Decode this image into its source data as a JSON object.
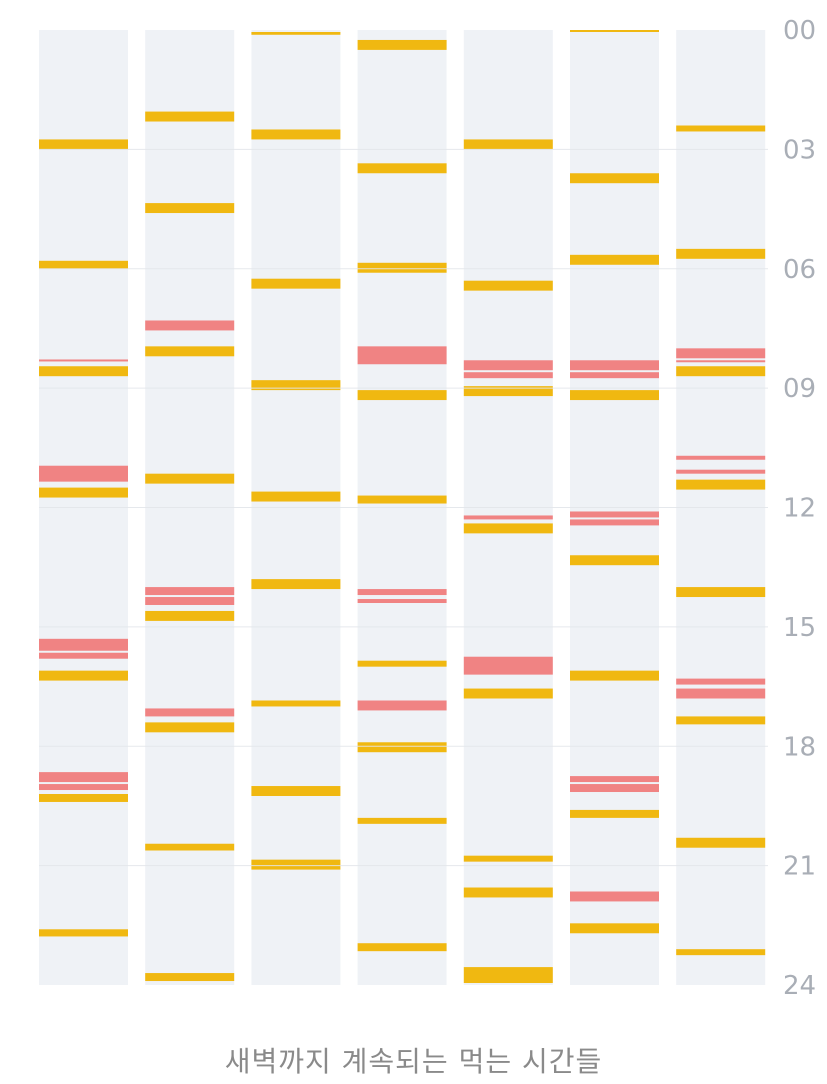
{
  "caption": "새벽까지 계속되는 먹는 시간들",
  "colors": {
    "background": "#ffffff",
    "column": "#eff2f6",
    "gridline": "#e3e6ea",
    "meal": "#f0b811",
    "snack": "#f08383",
    "tick": "#a9aeb6"
  },
  "chart_data": {
    "type": "timeline",
    "title": "",
    "y_axis": {
      "range": [
        0,
        24
      ],
      "ticks": [
        "00",
        "03",
        "06",
        "09",
        "12",
        "15",
        "18",
        "21",
        "24"
      ],
      "tick_values": [
        0,
        3,
        6,
        9,
        12,
        15,
        18,
        21,
        24
      ],
      "grid": true
    },
    "columns": [
      {
        "events": [
          {
            "start": 2.75,
            "end": 3.0,
            "kind": "meal"
          },
          {
            "start": 5.8,
            "end": 6.0,
            "kind": "meal"
          },
          {
            "start": 8.28,
            "end": 8.33,
            "kind": "snack"
          },
          {
            "start": 8.45,
            "end": 8.7,
            "kind": "meal"
          },
          {
            "start": 10.95,
            "end": 11.35,
            "kind": "snack"
          },
          {
            "start": 11.5,
            "end": 11.75,
            "kind": "meal"
          },
          {
            "start": 15.3,
            "end": 15.6,
            "kind": "snack"
          },
          {
            "start": 15.65,
            "end": 15.8,
            "kind": "snack"
          },
          {
            "start": 16.1,
            "end": 16.35,
            "kind": "meal"
          },
          {
            "start": 18.65,
            "end": 18.9,
            "kind": "snack"
          },
          {
            "start": 18.95,
            "end": 19.1,
            "kind": "snack"
          },
          {
            "start": 19.2,
            "end": 19.4,
            "kind": "meal"
          },
          {
            "start": 22.6,
            "end": 22.78,
            "kind": "meal"
          }
        ]
      },
      {
        "events": [
          {
            "start": 2.05,
            "end": 2.3,
            "kind": "meal"
          },
          {
            "start": 4.35,
            "end": 4.6,
            "kind": "meal"
          },
          {
            "start": 7.3,
            "end": 7.55,
            "kind": "snack"
          },
          {
            "start": 7.95,
            "end": 8.2,
            "kind": "meal"
          },
          {
            "start": 11.15,
            "end": 11.4,
            "kind": "meal"
          },
          {
            "start": 14.0,
            "end": 14.2,
            "kind": "snack"
          },
          {
            "start": 14.25,
            "end": 14.45,
            "kind": "snack"
          },
          {
            "start": 14.6,
            "end": 14.85,
            "kind": "meal"
          },
          {
            "start": 17.05,
            "end": 17.25,
            "kind": "snack"
          },
          {
            "start": 17.4,
            "end": 17.65,
            "kind": "meal"
          },
          {
            "start": 20.45,
            "end": 20.62,
            "kind": "meal"
          },
          {
            "start": 23.7,
            "end": 23.9,
            "kind": "meal"
          }
        ]
      },
      {
        "events": [
          {
            "start": 0.05,
            "end": 0.12,
            "kind": "meal"
          },
          {
            "start": 2.5,
            "end": 2.75,
            "kind": "meal"
          },
          {
            "start": 6.25,
            "end": 6.5,
            "kind": "meal"
          },
          {
            "start": 8.8,
            "end": 9.05,
            "kind": "meal"
          },
          {
            "start": 11.6,
            "end": 11.85,
            "kind": "meal"
          },
          {
            "start": 13.8,
            "end": 14.05,
            "kind": "meal"
          },
          {
            "start": 16.85,
            "end": 17.0,
            "kind": "meal"
          },
          {
            "start": 19.0,
            "end": 19.25,
            "kind": "meal"
          },
          {
            "start": 20.85,
            "end": 21.1,
            "kind": "meal"
          }
        ]
      },
      {
        "events": [
          {
            "start": 0.25,
            "end": 0.5,
            "kind": "meal"
          },
          {
            "start": 3.35,
            "end": 3.6,
            "kind": "meal"
          },
          {
            "start": 5.85,
            "end": 6.1,
            "kind": "meal"
          },
          {
            "start": 7.95,
            "end": 8.4,
            "kind": "snack"
          },
          {
            "start": 9.05,
            "end": 9.3,
            "kind": "meal"
          },
          {
            "start": 11.7,
            "end": 11.9,
            "kind": "meal"
          },
          {
            "start": 14.05,
            "end": 14.2,
            "kind": "snack"
          },
          {
            "start": 14.3,
            "end": 14.4,
            "kind": "snack"
          },
          {
            "start": 15.85,
            "end": 16.0,
            "kind": "meal"
          },
          {
            "start": 16.85,
            "end": 17.1,
            "kind": "snack"
          },
          {
            "start": 17.9,
            "end": 18.15,
            "kind": "meal"
          },
          {
            "start": 19.8,
            "end": 19.95,
            "kind": "meal"
          },
          {
            "start": 22.95,
            "end": 23.15,
            "kind": "meal"
          }
        ]
      },
      {
        "events": [
          {
            "start": 2.75,
            "end": 3.0,
            "kind": "meal"
          },
          {
            "start": 6.3,
            "end": 6.55,
            "kind": "meal"
          },
          {
            "start": 8.3,
            "end": 8.55,
            "kind": "snack"
          },
          {
            "start": 8.6,
            "end": 8.75,
            "kind": "snack"
          },
          {
            "start": 8.95,
            "end": 9.2,
            "kind": "meal"
          },
          {
            "start": 12.2,
            "end": 12.3,
            "kind": "snack"
          },
          {
            "start": 12.4,
            "end": 12.65,
            "kind": "meal"
          },
          {
            "start": 15.75,
            "end": 16.2,
            "kind": "snack"
          },
          {
            "start": 16.55,
            "end": 16.8,
            "kind": "meal"
          },
          {
            "start": 20.75,
            "end": 20.9,
            "kind": "meal"
          },
          {
            "start": 21.55,
            "end": 21.8,
            "kind": "meal"
          },
          {
            "start": 23.55,
            "end": 23.95,
            "kind": "meal"
          }
        ]
      },
      {
        "events": [
          {
            "start": 0.0,
            "end": 0.05,
            "kind": "meal"
          },
          {
            "start": 3.6,
            "end": 3.85,
            "kind": "meal"
          },
          {
            "start": 5.65,
            "end": 5.9,
            "kind": "meal"
          },
          {
            "start": 8.3,
            "end": 8.55,
            "kind": "snack"
          },
          {
            "start": 8.6,
            "end": 8.75,
            "kind": "snack"
          },
          {
            "start": 9.05,
            "end": 9.3,
            "kind": "meal"
          },
          {
            "start": 12.1,
            "end": 12.25,
            "kind": "snack"
          },
          {
            "start": 12.3,
            "end": 12.45,
            "kind": "snack"
          },
          {
            "start": 13.2,
            "end": 13.45,
            "kind": "meal"
          },
          {
            "start": 16.1,
            "end": 16.35,
            "kind": "meal"
          },
          {
            "start": 18.75,
            "end": 18.9,
            "kind": "snack"
          },
          {
            "start": 18.95,
            "end": 19.15,
            "kind": "snack"
          },
          {
            "start": 19.6,
            "end": 19.8,
            "kind": "meal"
          },
          {
            "start": 21.65,
            "end": 21.9,
            "kind": "snack"
          },
          {
            "start": 22.45,
            "end": 22.7,
            "kind": "meal"
          }
        ]
      },
      {
        "events": [
          {
            "start": 2.4,
            "end": 2.55,
            "kind": "meal"
          },
          {
            "start": 5.5,
            "end": 5.75,
            "kind": "meal"
          },
          {
            "start": 8.0,
            "end": 8.25,
            "kind": "snack"
          },
          {
            "start": 8.3,
            "end": 8.35,
            "kind": "snack"
          },
          {
            "start": 8.45,
            "end": 8.7,
            "kind": "meal"
          },
          {
            "start": 10.7,
            "end": 10.8,
            "kind": "snack"
          },
          {
            "start": 11.05,
            "end": 11.15,
            "kind": "snack"
          },
          {
            "start": 11.3,
            "end": 11.55,
            "kind": "meal"
          },
          {
            "start": 14.0,
            "end": 14.25,
            "kind": "meal"
          },
          {
            "start": 16.3,
            "end": 16.45,
            "kind": "snack"
          },
          {
            "start": 16.55,
            "end": 16.8,
            "kind": "snack"
          },
          {
            "start": 17.25,
            "end": 17.45,
            "kind": "meal"
          },
          {
            "start": 20.3,
            "end": 20.55,
            "kind": "meal"
          },
          {
            "start": 23.1,
            "end": 23.25,
            "kind": "meal"
          }
        ]
      }
    ]
  }
}
